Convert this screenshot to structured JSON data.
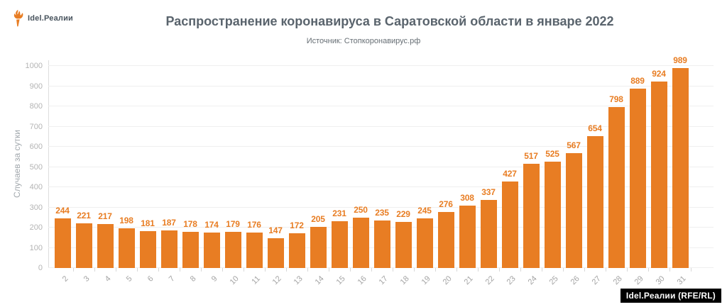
{
  "logo": {
    "text": "Idel.Реалии"
  },
  "badge": {
    "text": "Idel.Реалии (RFE/RL)"
  },
  "colors": {
    "bar": "#E87D23",
    "value_label": "#E87D23",
    "title": "#5A646D",
    "subtitle": "#666E74",
    "y_tick": "#B4B4B4",
    "x_tick": "#A4A4A4",
    "y_title": "#A2A8AD",
    "grid": "#EFEFEF",
    "axis": "#DDDDDD",
    "badge_bg": "#000000",
    "badge_text": "#FFFFFF"
  },
  "chart_data": {
    "type": "bar",
    "title": "Распространение коронавируса в Саратовской области в январе 2022",
    "source": "Источник: Стопкоронавирус.рф",
    "xlabel": "",
    "ylabel": "Случаев за сутки",
    "categories": [
      "2",
      "3",
      "4",
      "5",
      "6",
      "7",
      "8",
      "9",
      "10",
      "11",
      "12",
      "13",
      "14",
      "15",
      "16",
      "17",
      "18",
      "19",
      "20",
      "21",
      "22",
      "23",
      "24",
      "25",
      "26",
      "27",
      "28",
      "29",
      "30",
      "31"
    ],
    "values": [
      244,
      221,
      217,
      198,
      181,
      187,
      178,
      174,
      179,
      176,
      147,
      172,
      205,
      231,
      250,
      235,
      229,
      245,
      276,
      308,
      337,
      427,
      517,
      525,
      567,
      654,
      798,
      889,
      924,
      989
    ],
    "ylim": [
      0,
      1000
    ],
    "yticks": [
      0,
      100,
      200,
      300,
      400,
      500,
      600,
      700,
      800,
      900,
      1000
    ],
    "grid": true,
    "legend": false,
    "bar_labels": true
  }
}
